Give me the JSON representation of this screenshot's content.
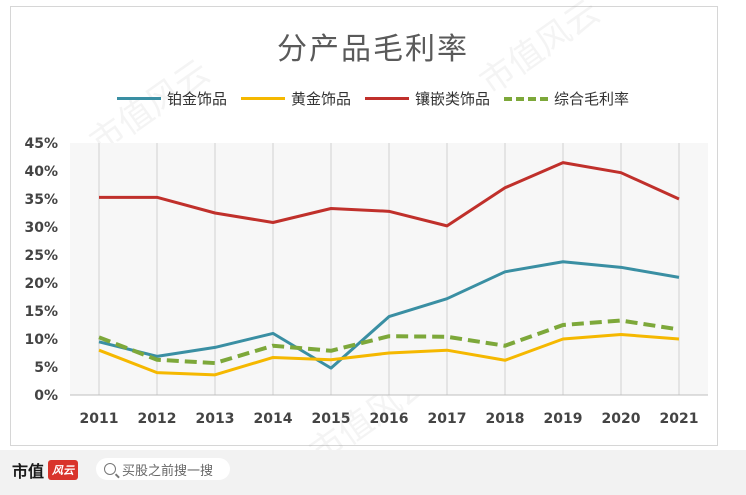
{
  "title": "分产品毛利率",
  "footer": {
    "brand_text": "市值",
    "brand_logo_text": "风云",
    "search_placeholder": "买股之前搜一搜"
  },
  "watermark_text": "市值风云",
  "chart_data": {
    "type": "line",
    "title": "分产品毛利率",
    "categories": [
      "2011",
      "2012",
      "2013",
      "2014",
      "2015",
      "2016",
      "2017",
      "2018",
      "2019",
      "2020",
      "2021"
    ],
    "y_ticks": [
      "0%",
      "5%",
      "10%",
      "15%",
      "20%",
      "25%",
      "30%",
      "35%",
      "40%",
      "45%"
    ],
    "ylim": [
      0,
      45
    ],
    "legend_position": "top",
    "grid": "vertical",
    "series": [
      {
        "name": "铂金饰品",
        "color": "#3a8fa3",
        "dashed": false,
        "values": [
          9.5,
          6.9,
          8.5,
          11.0,
          4.8,
          14.0,
          17.2,
          22.0,
          23.8,
          22.8,
          21.0
        ]
      },
      {
        "name": "黄金饰品",
        "color": "#f5b800",
        "dashed": false,
        "values": [
          8.0,
          4.0,
          3.6,
          6.7,
          6.3,
          7.5,
          8.0,
          6.2,
          10.0,
          10.8,
          10.0
        ]
      },
      {
        "name": "镶嵌类饰品",
        "color": "#c0302b",
        "dashed": false,
        "values": [
          35.3,
          35.3,
          32.5,
          30.8,
          33.3,
          32.8,
          30.2,
          37.0,
          41.5,
          39.7,
          35.0
        ]
      },
      {
        "name": "综合毛利率",
        "color": "#7da83a",
        "dashed": true,
        "values": [
          10.3,
          6.3,
          5.7,
          8.8,
          7.9,
          10.5,
          10.4,
          8.8,
          12.5,
          13.3,
          11.7
        ]
      }
    ]
  }
}
